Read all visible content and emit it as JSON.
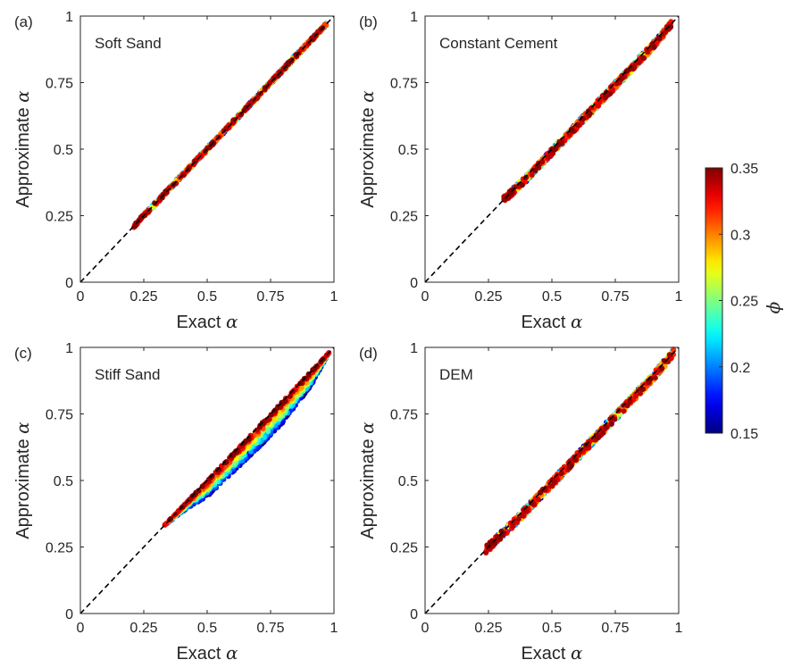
{
  "figure": {
    "panels": [
      {
        "label": "(a)",
        "title": "Soft Sand",
        "xlabel": "Exact",
        "ylabel": "Approximate",
        "symbol": "α"
      },
      {
        "label": "(b)",
        "title": "Constant Cement",
        "xlabel": "Exact",
        "ylabel": "Approximate",
        "symbol": "α"
      },
      {
        "label": "(c)",
        "title": "Stiff Sand",
        "xlabel": "Exact",
        "ylabel": "Approximate",
        "symbol": "α"
      },
      {
        "label": "(d)",
        "title": "DEM",
        "xlabel": "Exact",
        "ylabel": "Approximate",
        "symbol": "α"
      }
    ],
    "colorbar": {
      "label": "ϕ",
      "min": 0.15,
      "max": 0.35,
      "ticks": [
        "0.35",
        "0.3",
        "0.25",
        "0.2",
        "0.15"
      ],
      "colormap": "jet"
    }
  },
  "chart_data": [
    {
      "type": "scatter",
      "title": "Soft Sand",
      "xlabel": "Exact α",
      "ylabel": "Approximate α",
      "xlim": [
        0,
        1
      ],
      "ylim": [
        0,
        1
      ],
      "xticks": [
        "0",
        "0.25",
        "0.5",
        "0.75",
        "1"
      ],
      "yticks": [
        "0",
        "0.25",
        "0.5",
        "0.75",
        "1"
      ],
      "reference_line": {
        "style": "dashed",
        "x": [
          0,
          1
        ],
        "y": [
          0,
          1
        ]
      },
      "series": [
        {
          "exact": [
            0.21,
            0.3,
            0.4,
            0.5,
            0.6,
            0.7,
            0.8,
            0.9,
            0.97
          ],
          "approx": [
            0.21,
            0.3,
            0.4,
            0.5,
            0.6,
            0.7,
            0.8,
            0.9,
            0.97
          ],
          "phi_range": [
            0.15,
            0.35
          ],
          "spread": 0.006
        }
      ]
    },
    {
      "type": "scatter",
      "title": "Constant Cement",
      "xlabel": "Exact α",
      "ylabel": "Approximate α",
      "xlim": [
        0,
        1
      ],
      "ylim": [
        0,
        1
      ],
      "xticks": [
        "0",
        "0.25",
        "0.5",
        "0.75",
        "1"
      ],
      "yticks": [
        "0",
        "0.25",
        "0.5",
        "0.75",
        "1"
      ],
      "reference_line": {
        "style": "dashed",
        "x": [
          0,
          1
        ],
        "y": [
          0,
          1
        ]
      },
      "series": [
        {
          "exact": [
            0.31,
            0.4,
            0.5,
            0.6,
            0.7,
            0.8,
            0.9,
            0.97
          ],
          "approx": [
            0.31,
            0.39,
            0.49,
            0.59,
            0.69,
            0.79,
            0.89,
            0.97
          ],
          "phi_range": [
            0.15,
            0.35
          ],
          "spread": 0.012
        }
      ]
    },
    {
      "type": "scatter",
      "title": "Stiff Sand",
      "xlabel": "Exact α",
      "ylabel": "Approximate α",
      "xlim": [
        0,
        1
      ],
      "ylim": [
        0,
        1
      ],
      "xticks": [
        "0",
        "0.25",
        "0.5",
        "0.75",
        "1"
      ],
      "yticks": [
        "0",
        "0.25",
        "0.5",
        "0.75",
        "1"
      ],
      "reference_line": {
        "style": "dashed",
        "x": [
          0,
          1
        ],
        "y": [
          0,
          1
        ]
      },
      "series": [
        {
          "exact": [
            0.33,
            0.4,
            0.5,
            0.6,
            0.7,
            0.8,
            0.9,
            0.98
          ],
          "approx": [
            0.33,
            0.4,
            0.5,
            0.6,
            0.7,
            0.8,
            0.9,
            0.98
          ],
          "approx_low": [
            0.33,
            0.38,
            0.44,
            0.53,
            0.62,
            0.72,
            0.84,
            0.98
          ],
          "phi_range": [
            0.15,
            0.35
          ]
        }
      ]
    },
    {
      "type": "scatter",
      "title": "DEM",
      "xlabel": "Exact α",
      "ylabel": "Approximate α",
      "xlim": [
        0,
        1
      ],
      "ylim": [
        0,
        1
      ],
      "xticks": [
        "0",
        "0.25",
        "0.5",
        "0.75",
        "1"
      ],
      "yticks": [
        "0",
        "0.25",
        "0.5",
        "0.75",
        "1"
      ],
      "reference_line": {
        "style": "dashed",
        "x": [
          0,
          1
        ],
        "y": [
          0,
          1
        ]
      },
      "series": [
        {
          "exact": [
            0.24,
            0.35,
            0.5,
            0.6,
            0.7,
            0.8,
            0.9,
            0.98
          ],
          "approx": [
            0.24,
            0.34,
            0.49,
            0.59,
            0.69,
            0.79,
            0.89,
            0.98
          ],
          "phi_range": [
            0.15,
            0.35
          ],
          "spread": 0.014
        }
      ]
    }
  ]
}
